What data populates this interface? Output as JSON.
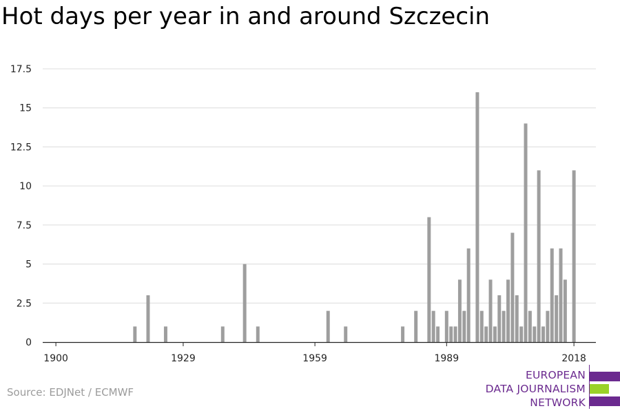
{
  "title": "Hot days per year in and around Szczecin",
  "source": "Source: EDJNet / ECMWF",
  "logo": {
    "lines": [
      "EUROPEAN",
      "DATA JOURNALISM",
      "NETWORK"
    ],
    "colors": {
      "purple": "#6b2a8f",
      "green": "#9ad228"
    }
  },
  "chart_data": {
    "type": "bar",
    "title": "Hot days per year in and around Szczecin",
    "xlabel": "",
    "ylabel": "",
    "xlim": [
      1897,
      2023
    ],
    "ylim": [
      0,
      17.5
    ],
    "x_ticks": [
      1900,
      1929,
      1959,
      1989,
      2018
    ],
    "y_ticks": [
      0,
      2.5,
      5,
      7.5,
      10,
      12.5,
      15,
      17.5
    ],
    "y_tick_labels": [
      "0",
      "2.5",
      "5",
      "7.5",
      "10",
      "12.5",
      "15",
      "17.5"
    ],
    "bar_color": "#9e9e9e",
    "grid": true,
    "x": [
      1918,
      1921,
      1925,
      1938,
      1943,
      1946,
      1962,
      1966,
      1979,
      1982,
      1985,
      1986,
      1987,
      1989,
      1990,
      1991,
      1992,
      1993,
      1994,
      1996,
      1997,
      1998,
      1999,
      2000,
      2001,
      2002,
      2003,
      2004,
      2005,
      2006,
      2007,
      2008,
      2009,
      2010,
      2011,
      2012,
      2013,
      2014,
      2015,
      2016,
      2017,
      2018
    ],
    "values": [
      1,
      3,
      1,
      1,
      5,
      1,
      2,
      1,
      1,
      2,
      8,
      2,
      1,
      2,
      1,
      1,
      4,
      2,
      6,
      16,
      2,
      1,
      4,
      1,
      3,
      2,
      4,
      7,
      3,
      1,
      14,
      2,
      1,
      11,
      1,
      2,
      6,
      3,
      6,
      4,
      0,
      11
    ]
  }
}
